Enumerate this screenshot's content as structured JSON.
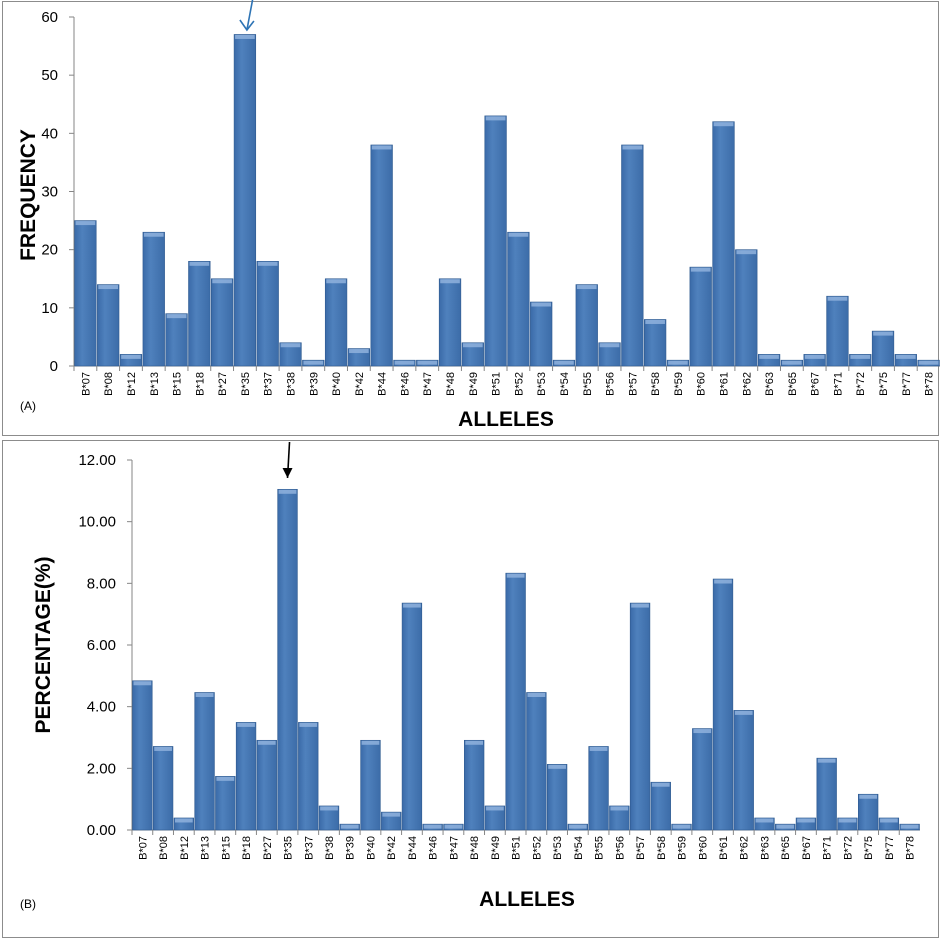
{
  "chart_data": [
    {
      "type": "bar",
      "panel_label": "(A)",
      "xlabel": "ALLELES",
      "ylabel": "FREQUENCY",
      "ylim": [
        0,
        60
      ],
      "yticks": [
        "0",
        "10",
        "20",
        "30",
        "40",
        "50",
        "60"
      ],
      "ytick_values": [
        0,
        10,
        20,
        30,
        40,
        50,
        60
      ],
      "categories": [
        "B*07",
        "B*08",
        "B*12",
        "B*13",
        "B*15",
        "B*18",
        "B*27",
        "B*35",
        "B*37",
        "B*38",
        "B*39",
        "B*40",
        "B*42",
        "B*44",
        "B*46",
        "B*47",
        "B*48",
        "B*49",
        "B*51",
        "B*52",
        "B*53",
        "B*54",
        "B*55",
        "B*56",
        "B*57",
        "B*58",
        "B*59",
        "B*60",
        "B*61",
        "B*62",
        "B*63",
        "B*65",
        "B*67",
        "B*71",
        "B*72",
        "B*75",
        "B*77",
        "B*78"
      ],
      "values": [
        25,
        14,
        2,
        23,
        9,
        18,
        15,
        57,
        18,
        4,
        1,
        15,
        3,
        38,
        1,
        1,
        15,
        4,
        43,
        23,
        11,
        1,
        14,
        4,
        38,
        8,
        1,
        17,
        42,
        20,
        2,
        1,
        2,
        12,
        2,
        6,
        2,
        1
      ],
      "bar_color": "#4f81bd",
      "arrow_at": "B*35",
      "arrow_color": "#2e74b5",
      "grid": false
    },
    {
      "type": "bar",
      "panel_label": "(B)",
      "xlabel": "ALLELES",
      "ylabel": "PERCENTAGE(%)",
      "ylim": [
        0,
        12
      ],
      "yticks": [
        "0.00",
        "2.00",
        "4.00",
        "6.00",
        "8.00",
        "10.00",
        "12.00"
      ],
      "ytick_values": [
        0,
        2,
        4,
        6,
        8,
        10,
        12
      ],
      "categories": [
        "B*07",
        "B*08",
        "B*12",
        "B*13",
        "B*15",
        "B*18",
        "B*27",
        "B*35",
        "B*37",
        "B*38",
        "B*39",
        "B*40",
        "B*42",
        "B*44",
        "B*46",
        "B*47",
        "B*48",
        "B*49",
        "B*51",
        "B*52",
        "B*53",
        "B*54",
        "B*55",
        "B*56",
        "B*57",
        "B*58",
        "B*59",
        "B*60",
        "B*61",
        "B*62",
        "B*63",
        "B*65",
        "B*67",
        "B*71",
        "B*72",
        "B*75",
        "B*77",
        "B*78"
      ],
      "values": [
        4.84,
        2.71,
        0.39,
        4.46,
        1.74,
        3.49,
        2.91,
        11.05,
        3.49,
        0.78,
        0.19,
        2.91,
        0.58,
        7.36,
        0.19,
        0.19,
        2.91,
        0.78,
        8.33,
        4.46,
        2.13,
        0.19,
        2.71,
        0.78,
        7.36,
        1.55,
        0.19,
        3.29,
        8.14,
        3.88,
        0.39,
        0.19,
        0.39,
        2.33,
        0.39,
        1.16,
        0.39,
        0.19
      ],
      "bar_color": "#4f81bd",
      "arrow_at": "B*35",
      "arrow_color": "#000000",
      "grid": false
    }
  ]
}
